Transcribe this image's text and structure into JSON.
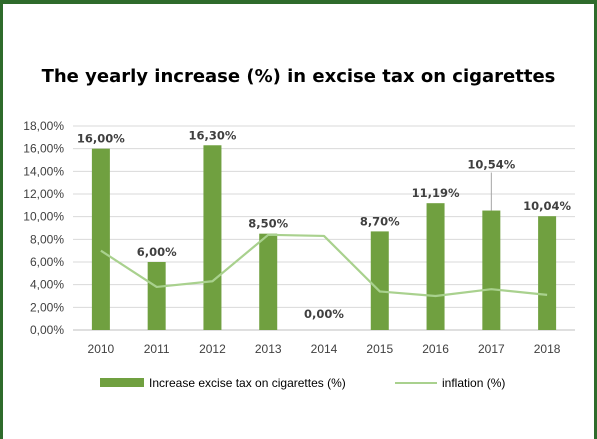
{
  "chart_data": {
    "type": "bar",
    "title": "The yearly increase (%) in excise tax on cigarettes",
    "categories": [
      "2010",
      "2011",
      "2012",
      "2013",
      "2014",
      "2015",
      "2016",
      "2017",
      "2018"
    ],
    "ylim": [
      0,
      18
    ],
    "yticks": [
      0,
      2,
      4,
      6,
      8,
      10,
      12,
      14,
      16,
      18
    ],
    "ytick_labels": [
      "0,00%",
      "2,00%",
      "4,00%",
      "6,00%",
      "8,00%",
      "10,00%",
      "12,00%",
      "14,00%",
      "16,00%",
      "18,00%"
    ],
    "grid": true,
    "legend_position": "bottom",
    "series": [
      {
        "name": "Increase excise tax on cigarettes (%)",
        "type": "bar",
        "color": "#70a040",
        "values": [
          16.0,
          6.0,
          16.3,
          8.5,
          0.0,
          8.7,
          11.19,
          10.54,
          10.04
        ],
        "labels": [
          "16,00%",
          "6,00%",
          "16,30%",
          "8,50%",
          "0,00%",
          "8,70%",
          "11,19%",
          "10,54%",
          "10,04%"
        ]
      },
      {
        "name": "inflation (%)",
        "type": "line",
        "color": "#a9d18e",
        "values": [
          7.0,
          3.8,
          4.3,
          8.4,
          8.3,
          3.4,
          3.0,
          3.6,
          3.1
        ]
      }
    ]
  }
}
